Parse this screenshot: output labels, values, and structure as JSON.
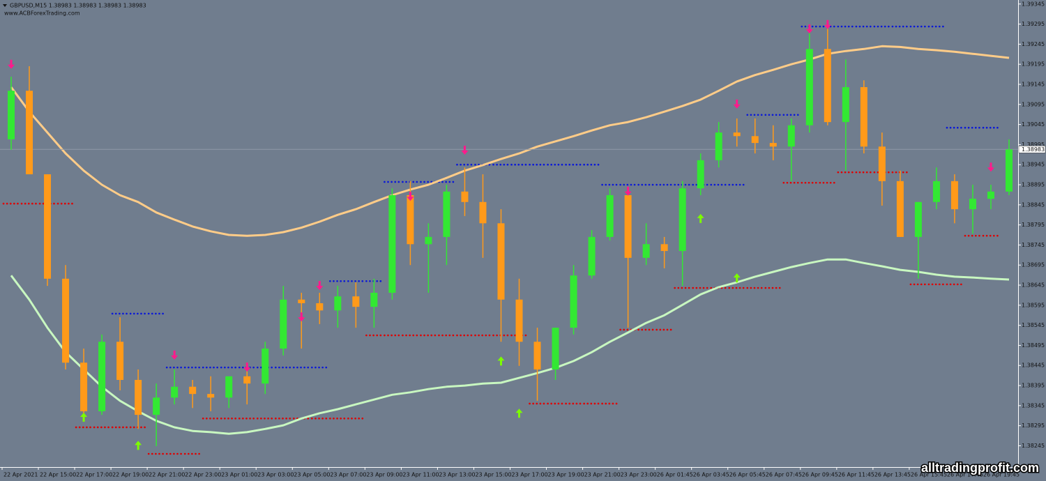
{
  "chart_data": {
    "type": "candlestick",
    "title": "GBPUSD,M15  1.38983 1.38983 1.38983 1.38983",
    "subtitle": "www.ACBForexTrading.com",
    "watermark": "alltradingprofit.com",
    "categories": [
      "22 Apr 2021",
      null,
      "22 Apr 15:00",
      null,
      "22 Apr 17:00",
      null,
      "22 Apr 19:00",
      null,
      "22 Apr 21:00",
      null,
      "22 Apr 23:00",
      null,
      "23 Apr 01:00",
      null,
      "23 Apr 03:00",
      null,
      "23 Apr 05:00",
      null,
      "23 Apr 07:00",
      null,
      "23 Apr 09:00",
      null,
      "23 Apr 11:00",
      null,
      "23 Apr 13:00",
      null,
      "23 Apr 15:00",
      null,
      "23 Apr 17:00",
      null,
      "23 Apr 19:00",
      null,
      "23 Apr 21:00",
      null,
      "23 Apr 23:00",
      null,
      "26 Apr 01:45",
      null,
      "26 Apr 03:45",
      null,
      "26 Apr 05:45",
      null,
      "26 Apr 07:45",
      null,
      "26 Apr 09:45",
      null,
      "26 Apr 11:45",
      null,
      "26 Apr 13:45",
      null,
      "26 Apr 15:45",
      null,
      "26 Apr 17:45",
      null,
      "26 Apr 19:45",
      null
    ],
    "open": [
      1.39008,
      1.39129,
      1.38921,
      1.38661,
      1.38452,
      1.38331,
      1.38504,
      1.38409,
      1.38322,
      1.38365,
      1.38392,
      1.38374,
      1.38365,
      1.38418,
      1.384,
      1.38487,
      1.38609,
      1.386,
      1.38582,
      1.38617,
      1.38591,
      1.38626,
      1.38869,
      1.38747,
      1.38765,
      1.38878,
      1.38852,
      1.38799,
      1.38609,
      1.38504,
      1.38435,
      1.38539,
      1.38669,
      1.38765,
      1.38869,
      1.38713,
      1.38747,
      1.3873,
      1.38886,
      1.38956,
      1.39025,
      1.39016,
      1.38999,
      1.3899,
      1.39043,
      1.39233,
      1.39051,
      1.39138,
      1.3899,
      1.38904,
      1.38765,
      1.38852,
      1.38904,
      1.38834,
      1.3886,
      1.38878
    ],
    "high": [
      1.39164,
      1.3919,
      1.38921,
      1.38695,
      1.38487,
      1.38522,
      1.38565,
      1.38435,
      1.384,
      1.38435,
      1.38409,
      1.38418,
      1.38409,
      1.38452,
      1.38504,
      1.38643,
      1.38626,
      1.38626,
      1.38643,
      1.38652,
      1.38661,
      1.38886,
      1.38904,
      1.38799,
      1.38895,
      1.38938,
      1.38921,
      1.38834,
      1.38661,
      1.38539,
      1.38539,
      1.38695,
      1.38782,
      1.38886,
      1.38878,
      1.38799,
      1.38765,
      1.38904,
      1.38973,
      1.39051,
      1.3906,
      1.3906,
      1.39043,
      1.3906,
      1.39294,
      1.39286,
      1.39207,
      1.39155,
      1.39025,
      1.3893,
      1.38852,
      1.38938,
      1.38921,
      1.38895,
      1.38895,
      1.39008
    ],
    "low": [
      1.38982,
      1.38921,
      1.38643,
      1.38435,
      1.38313,
      1.38322,
      1.38383,
      1.38287,
      1.38244,
      1.38348,
      1.38339,
      1.38331,
      1.38339,
      1.38348,
      1.38374,
      1.3847,
      1.38487,
      1.38548,
      1.38539,
      1.38539,
      1.38539,
      1.38609,
      1.38695,
      1.38626,
      1.38695,
      1.38817,
      1.38713,
      1.38504,
      1.38444,
      1.38357,
      1.38409,
      1.38522,
      1.38661,
      1.38756,
      1.38539,
      1.38695,
      1.38687,
      1.38643,
      1.38869,
      1.38938,
      1.3899,
      1.38973,
      1.38956,
      1.38904,
      1.39025,
      1.39043,
      1.3893,
      1.38973,
      1.38843,
      1.38765,
      1.38661,
      1.38834,
      1.38799,
      1.38773,
      1.38834,
      1.38869
    ],
    "close": [
      1.39129,
      1.38921,
      1.38661,
      1.38452,
      1.38331,
      1.38504,
      1.38409,
      1.38322,
      1.38365,
      1.38392,
      1.38374,
      1.38365,
      1.38418,
      1.384,
      1.38487,
      1.38609,
      1.386,
      1.38582,
      1.38617,
      1.38591,
      1.38626,
      1.38869,
      1.38747,
      1.38765,
      1.38878,
      1.38852,
      1.38799,
      1.38609,
      1.38504,
      1.38435,
      1.38539,
      1.38669,
      1.38765,
      1.38869,
      1.38713,
      1.38747,
      1.3873,
      1.38886,
      1.38956,
      1.39025,
      1.39016,
      1.38999,
      1.3899,
      1.39043,
      1.39233,
      1.39051,
      1.39138,
      1.3899,
      1.38904,
      1.38765,
      1.38852,
      1.38904,
      1.38834,
      1.3886,
      1.38878,
      1.38983
    ],
    "up_color": "#33e833",
    "down_color": "#ff9a1a",
    "moving_averages": [
      {
        "color": "#ffcc88",
        "values": [
          1.39138,
          1.39077,
          1.39025,
          1.38973,
          1.3893,
          1.38895,
          1.38869,
          1.38852,
          1.38826,
          1.38808,
          1.38791,
          1.38779,
          1.3877,
          1.38768,
          1.3877,
          1.38777,
          1.38788,
          1.38803,
          1.3882,
          1.38834,
          1.38852,
          1.38869,
          1.38883,
          1.38895,
          1.38912,
          1.3893,
          1.38944,
          1.38959,
          1.38973,
          1.3899,
          1.39003,
          1.39016,
          1.3903,
          1.39043,
          1.39051,
          1.39063,
          1.39077,
          1.39091,
          1.39107,
          1.39129,
          1.39152,
          1.39168,
          1.39181,
          1.39195,
          1.39207,
          1.39221,
          1.39228,
          1.39233,
          1.3924,
          1.39238,
          1.39233,
          1.3923,
          1.39226,
          1.39221,
          1.39216,
          1.39211
        ]
      },
      {
        "color": "#c8f7c0",
        "values": [
          1.38669,
          1.38609,
          1.38539,
          1.38478,
          1.38435,
          1.38392,
          1.38357,
          1.38331,
          1.38307,
          1.38291,
          1.38282,
          1.38279,
          1.38275,
          1.38279,
          1.38287,
          1.38296,
          1.38313,
          1.38326,
          1.38336,
          1.38348,
          1.3836,
          1.38372,
          1.38378,
          1.38386,
          1.38392,
          1.38395,
          1.384,
          1.38402,
          1.38414,
          1.38426,
          1.38439,
          1.38456,
          1.38478,
          1.38504,
          1.38527,
          1.38551,
          1.3857,
          1.38596,
          1.38622,
          1.3864,
          1.38652,
          1.38666,
          1.38678,
          1.3869,
          1.387,
          1.38709,
          1.38709,
          1.387,
          1.38692,
          1.38683,
          1.38678,
          1.38671,
          1.38666,
          1.38664,
          1.38661,
          1.38659
        ]
      }
    ],
    "levels": [
      {
        "color": "#0a18d8",
        "values": [
          null,
          null,
          null,
          null,
          null,
          null,
          1.38574,
          1.38574,
          1.38574,
          1.3844,
          1.3844,
          1.3844,
          1.3844,
          1.3844,
          1.3844,
          1.3844,
          1.3844,
          1.3844,
          1.38655,
          1.38655,
          1.38655,
          1.38902,
          1.38902,
          1.38902,
          1.38902,
          1.38945,
          1.38945,
          1.38945,
          1.38945,
          1.38945,
          1.38945,
          1.38945,
          1.38945,
          1.38895,
          1.38895,
          1.38895,
          1.38895,
          1.38895,
          1.38895,
          1.38895,
          1.38895,
          1.39069,
          1.39069,
          1.39069,
          1.39289,
          1.39289,
          1.39289,
          1.39289,
          1.39289,
          1.39289,
          1.39289,
          1.39289,
          1.39037,
          1.39037,
          1.39037,
          null
        ]
      },
      {
        "color": "#e00000",
        "values": [
          1.38848,
          1.38848,
          1.38848,
          1.38848,
          1.38291,
          1.38291,
          1.38291,
          1.38291,
          1.38225,
          1.38225,
          1.38225,
          1.38313,
          1.38313,
          1.38313,
          1.38313,
          1.38313,
          1.38313,
          1.38313,
          1.38313,
          1.38313,
          1.3852,
          1.3852,
          1.3852,
          1.3852,
          1.3852,
          1.3852,
          1.3852,
          1.3852,
          1.3852,
          1.3835,
          1.3835,
          1.3835,
          1.3835,
          1.3835,
          1.38534,
          1.38534,
          1.38534,
          1.38638,
          1.38638,
          1.38638,
          1.38638,
          1.38638,
          1.38638,
          1.389,
          1.389,
          1.389,
          1.38926,
          1.38926,
          1.38926,
          1.38926,
          1.38647,
          1.38647,
          1.38647,
          1.38768,
          1.38768,
          null
        ]
      }
    ],
    "signals": [
      {
        "color": "#ff1a8c",
        "direction": "down",
        "values": [
          1.39194,
          null,
          null,
          null,
          null,
          null,
          null,
          null,
          null,
          1.3847,
          null,
          null,
          null,
          1.3844,
          null,
          null,
          1.38565,
          1.38643,
          null,
          null,
          null,
          null,
          1.38865,
          null,
          null,
          1.3898,
          null,
          null,
          null,
          null,
          null,
          null,
          null,
          null,
          1.38878,
          null,
          null,
          null,
          null,
          null,
          1.39095,
          null,
          null,
          null,
          1.39282,
          1.39293,
          null,
          null,
          null,
          null,
          null,
          null,
          null,
          null,
          1.38938,
          null
        ]
      },
      {
        "color": "#7cfc00",
        "direction": "up",
        "values": [
          null,
          null,
          null,
          null,
          1.38317,
          null,
          null,
          1.38247,
          null,
          null,
          null,
          null,
          null,
          null,
          null,
          null,
          null,
          null,
          null,
          null,
          null,
          null,
          null,
          null,
          null,
          null,
          null,
          1.38457,
          1.38327,
          null,
          null,
          null,
          null,
          null,
          null,
          null,
          null,
          null,
          1.38812,
          null,
          1.38664,
          null,
          null,
          null,
          null,
          null,
          null,
          null,
          null,
          null,
          null,
          null,
          null,
          null,
          null,
          null
        ]
      }
    ],
    "ylim": [
      1.38192,
      1.39355
    ],
    "yticks": [
      1.39345,
      1.39295,
      1.39245,
      1.39195,
      1.39145,
      1.39095,
      1.39045,
      1.38995,
      1.38945,
      1.38895,
      1.38845,
      1.38795,
      1.38745,
      1.38695,
      1.38645,
      1.38595,
      1.38545,
      1.38495,
      1.38445,
      1.38395,
      1.38345,
      1.38295,
      1.38245
    ]
  }
}
